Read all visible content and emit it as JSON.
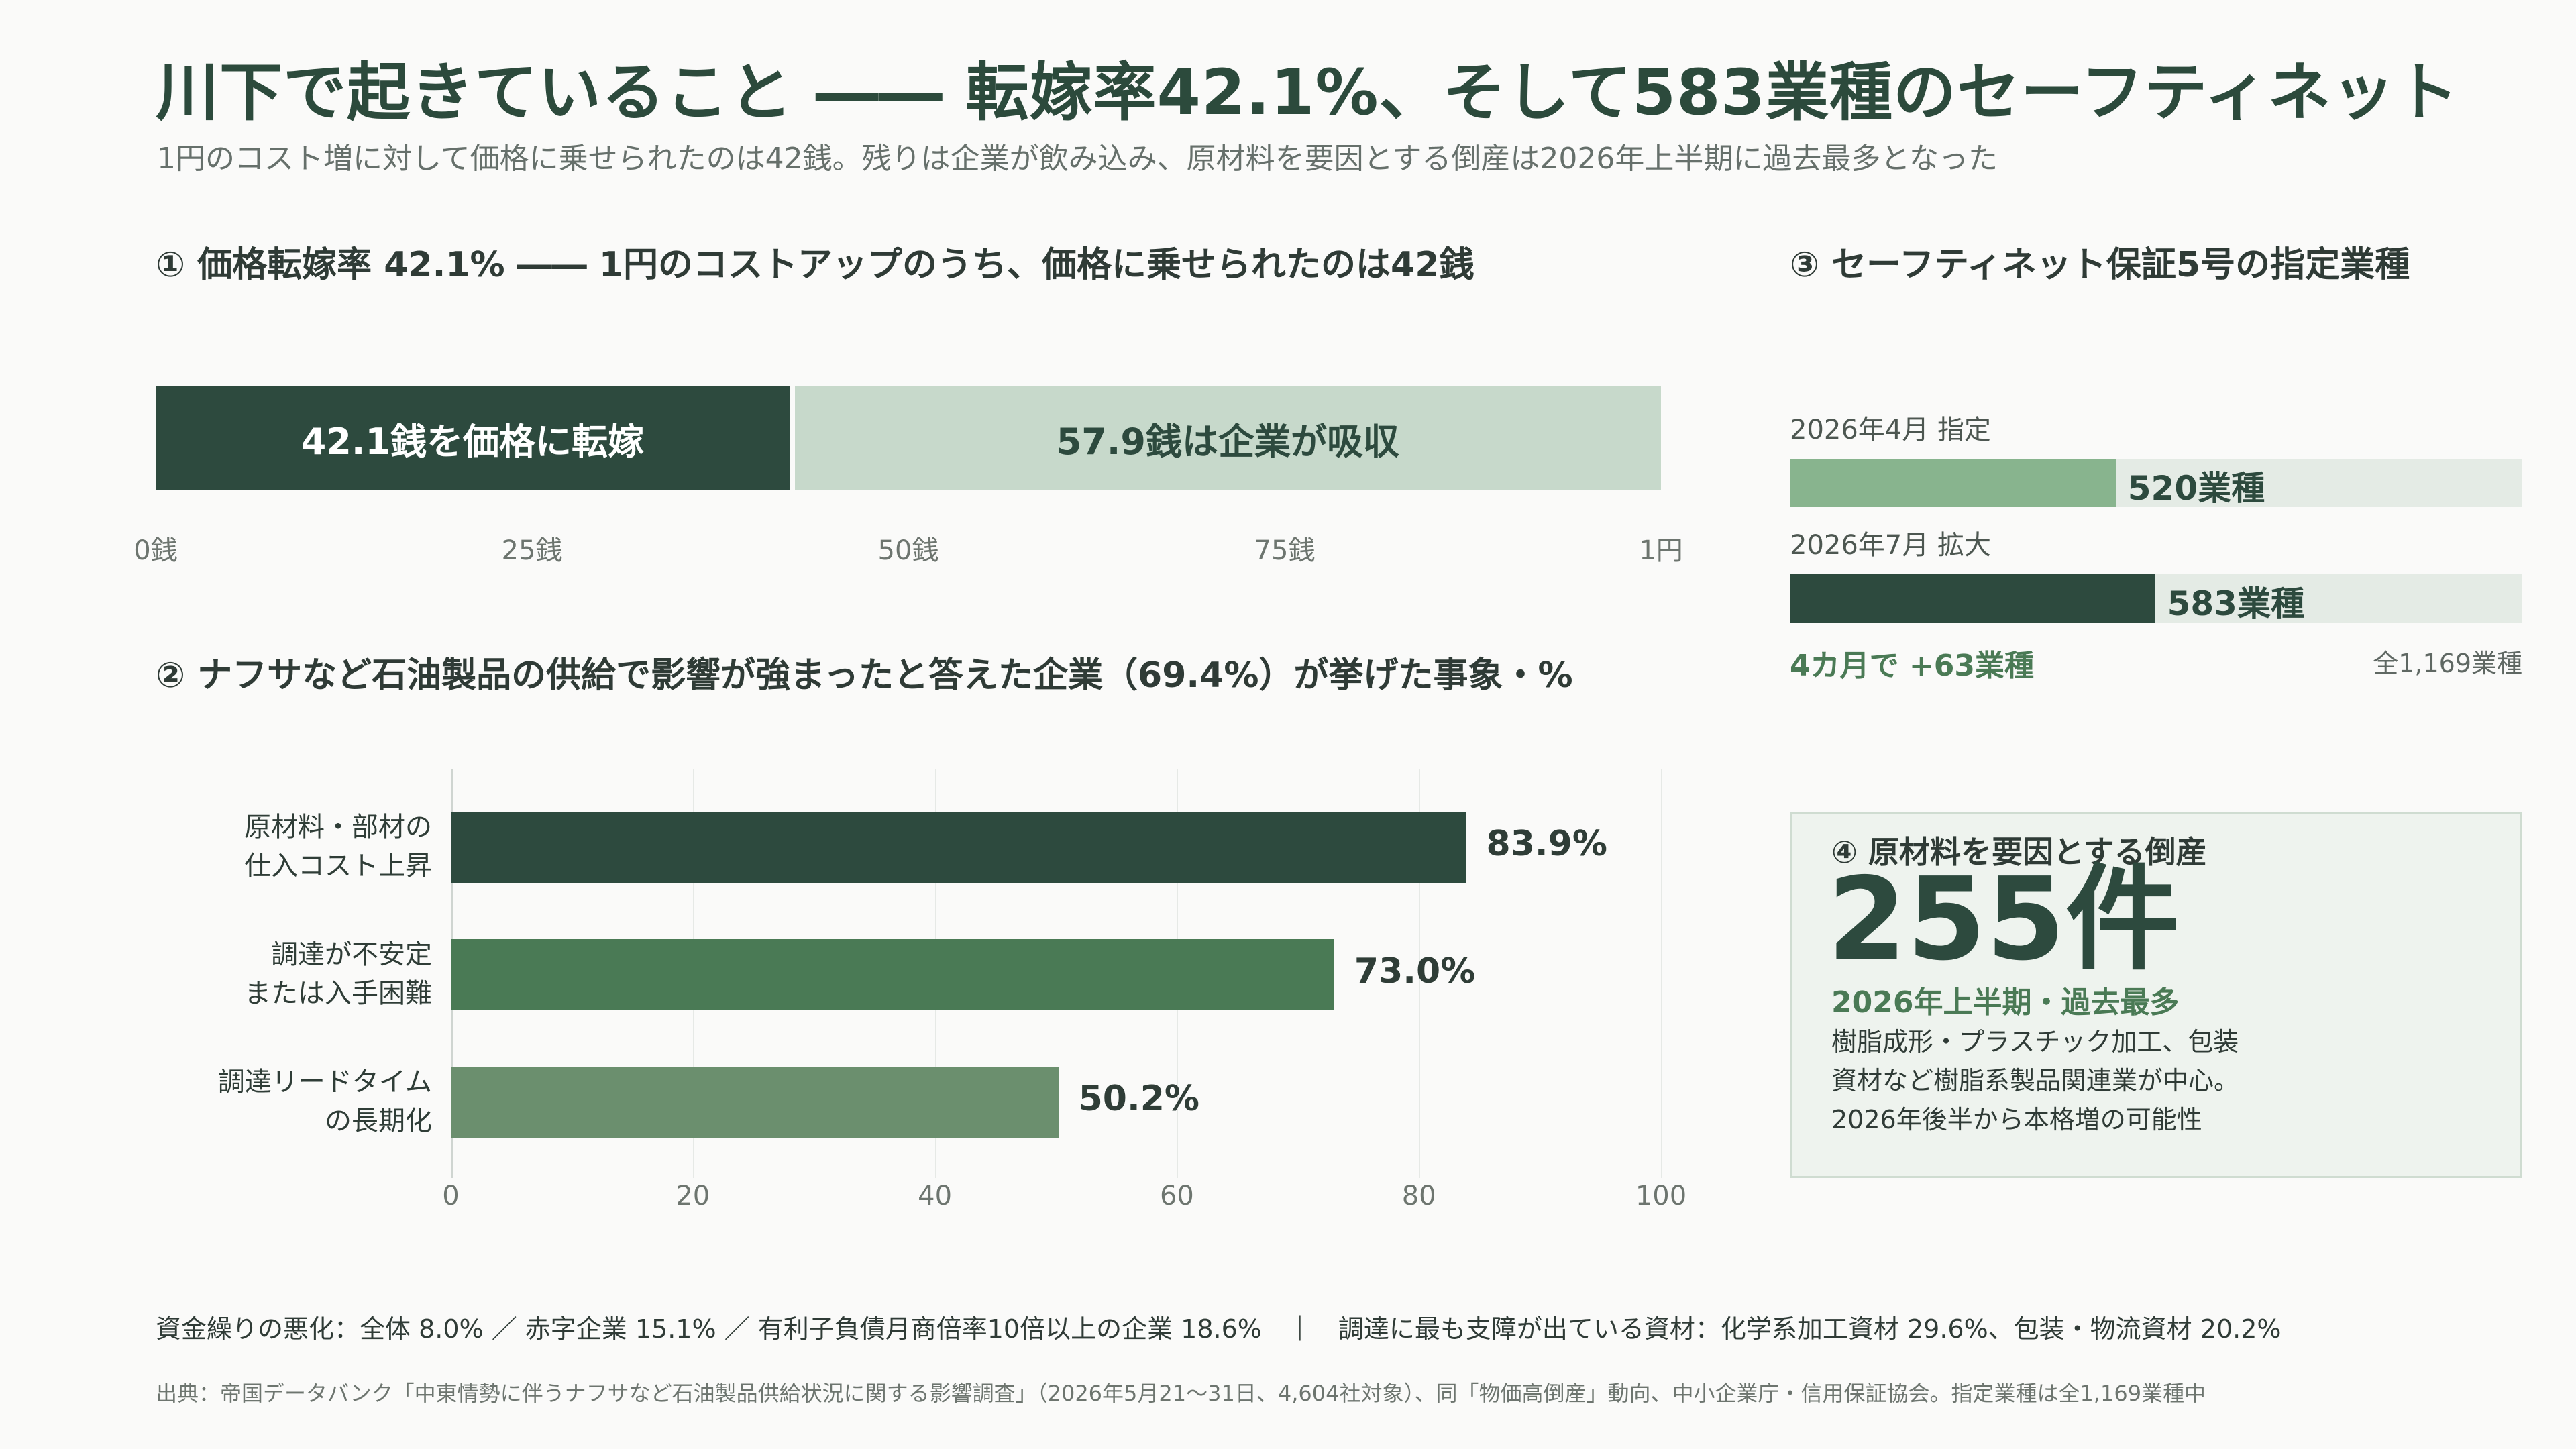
{
  "header": {
    "title": "川下で起きていること ―― 転嫁率42.1%、そして583業種のセーフティネット",
    "subtitle": "1円のコスト増に対して価格に乗せられたのは42銭。残りは企業が飲み込み、原材料を要因とする倒産は2026年上半期に過去最多となった"
  },
  "section1": {
    "heading": "① 価格転嫁率 42.1% ―― 1円のコストアップのうち、価格に乗せられたのは42銭",
    "pass_label": "42.1銭を価格に転嫁",
    "absorb_label": "57.9銭は企業が吸収",
    "ticks": [
      "0銭",
      "25銭",
      "50銭",
      "75銭",
      "1円"
    ]
  },
  "section2": {
    "heading": "② ナフサなど石油製品の供給で影響が強まったと答えた企業（69.4%）が挙げた事象・%",
    "x_ticks": [
      "0",
      "20",
      "40",
      "60",
      "80",
      "100"
    ]
  },
  "section3": {
    "heading": "③ セーフティネット保証5号の指定業種",
    "rows": [
      {
        "label": "2026年4月 指定",
        "value": 520,
        "value_label": "520業種"
      },
      {
        "label": "2026年7月 拡大",
        "value": 583,
        "value_label": "583業種"
      }
    ],
    "delta": "4カ月で +63業種",
    "total_label": "全1,169業種",
    "total": 1169
  },
  "section4": {
    "heading": "④ 原材料を要因とする倒産",
    "number": "255件",
    "sub": "2026年上半期・過去最多",
    "desc": [
      "樹脂成形・プラスチック加工、包装",
      "資材など樹脂系製品関連業が中心。",
      "2026年後半から本格増の可能性"
    ]
  },
  "footer": {
    "note": "資金繰りの悪化：全体 8.0% ／ 赤字企業 15.1% ／ 有利子負債月商倍率10倍以上の企業 18.6%　｜　調達に最も支障が出ている資材：化学系加工資材 29.6%、包装・物流資材 20.2%",
    "source": "出典：帝国データバンク「中東情勢に伴うナフサなど石油製品供給状況に関する影響調査」（2026年5月21〜31日、4,604社対象）、同「物価高倒産」動向、中小企業庁・信用保証協会。指定業種は全1,169業種中"
  },
  "colors": {
    "dark": "#2d4a3e",
    "mid": "#4a7a55",
    "light": "#6b8f6e",
    "pale": "#c7d9cb",
    "sn_apr": "#88b48e",
    "track": "#e4ebe5"
  },
  "chart_data": [
    {
      "type": "bar",
      "orientation": "horizontal-stacked",
      "categories": [
        "価格に転嫁",
        "企業が吸収"
      ],
      "values": [
        42.1,
        57.9
      ],
      "xlim": [
        0,
        100
      ],
      "xticks": [
        "0銭",
        "25銭",
        "50銭",
        "75銭",
        "1円"
      ]
    },
    {
      "type": "bar",
      "orientation": "horizontal",
      "categories": [
        "原材料・部材の仕入コスト上昇",
        "調達が不安定または入手困難",
        "調達リードタイムの長期化"
      ],
      "category_lines": [
        [
          "原材料・部材の",
          "仕入コスト上昇"
        ],
        [
          "調達が不安定",
          "または入手困難"
        ],
        [
          "調達リードタイム",
          "の長期化"
        ]
      ],
      "values": [
        83.9,
        73.0,
        50.2
      ],
      "value_labels": [
        "83.9%",
        "73.0%",
        "50.2%"
      ],
      "xlim": [
        0,
        100
      ],
      "grid": true
    },
    {
      "type": "bar",
      "orientation": "horizontal",
      "categories": [
        "2026年4月 指定",
        "2026年7月 拡大"
      ],
      "values": [
        520,
        583
      ],
      "xlim": [
        0,
        1169
      ]
    }
  ]
}
